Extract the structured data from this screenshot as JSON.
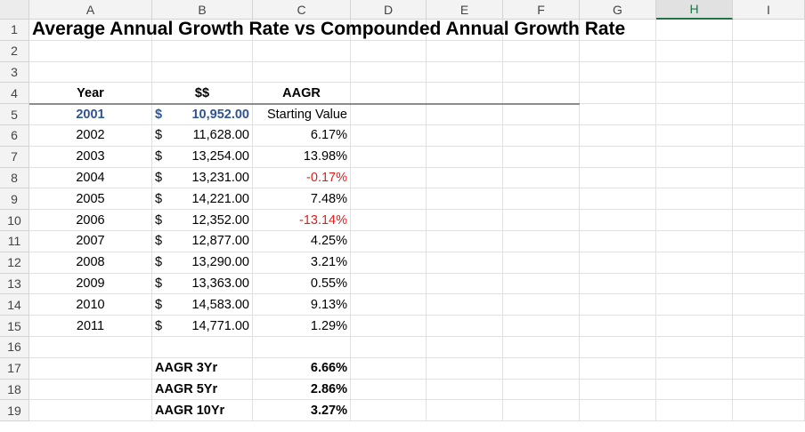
{
  "columns": [
    "A",
    "B",
    "C",
    "D",
    "E",
    "F",
    "G",
    "H",
    "I"
  ],
  "selected_column": "H",
  "rows": [
    "1",
    "2",
    "3",
    "4",
    "5",
    "6",
    "7",
    "8",
    "9",
    "10",
    "11",
    "12",
    "13",
    "14",
    "15",
    "16",
    "17",
    "18",
    "19"
  ],
  "title": "Average Annual Growth Rate vs Compounded Annual Growth Rate",
  "table_headers": {
    "year": "Year",
    "value": "$$",
    "aagr": "AAGR"
  },
  "data_rows": [
    {
      "year": "2001",
      "currency": "$",
      "amount": "10,952.00",
      "aagr": "Starting Value",
      "aagr_negative": false,
      "highlight": true
    },
    {
      "year": "2002",
      "currency": "$",
      "amount": "11,628.00",
      "aagr": "6.17%",
      "aagr_negative": false,
      "highlight": false
    },
    {
      "year": "2003",
      "currency": "$",
      "amount": "13,254.00",
      "aagr": "13.98%",
      "aagr_negative": false,
      "highlight": false
    },
    {
      "year": "2004",
      "currency": "$",
      "amount": "13,231.00",
      "aagr": "-0.17%",
      "aagr_negative": true,
      "highlight": false
    },
    {
      "year": "2005",
      "currency": "$",
      "amount": "14,221.00",
      "aagr": "7.48%",
      "aagr_negative": false,
      "highlight": false
    },
    {
      "year": "2006",
      "currency": "$",
      "amount": "12,352.00",
      "aagr": "-13.14%",
      "aagr_negative": true,
      "highlight": false
    },
    {
      "year": "2007",
      "currency": "$",
      "amount": "12,877.00",
      "aagr": "4.25%",
      "aagr_negative": false,
      "highlight": false
    },
    {
      "year": "2008",
      "currency": "$",
      "amount": "13,290.00",
      "aagr": "3.21%",
      "aagr_negative": false,
      "highlight": false
    },
    {
      "year": "2009",
      "currency": "$",
      "amount": "13,363.00",
      "aagr": "0.55%",
      "aagr_negative": false,
      "highlight": false
    },
    {
      "year": "2010",
      "currency": "$",
      "amount": "14,583.00",
      "aagr": "9.13%",
      "aagr_negative": false,
      "highlight": false
    },
    {
      "year": "2011",
      "currency": "$",
      "amount": "14,771.00",
      "aagr": "1.29%",
      "aagr_negative": false,
      "highlight": false
    }
  ],
  "summary": [
    {
      "label": "AAGR 3Yr",
      "value": "6.66%"
    },
    {
      "label": "AAGR 5Yr",
      "value": "2.86%"
    },
    {
      "label": "AAGR 10Yr",
      "value": "3.27%"
    }
  ],
  "colors": {
    "highlight_text": "#2f5496",
    "negative_text": "#e2201b",
    "selected_header": "#217346"
  }
}
